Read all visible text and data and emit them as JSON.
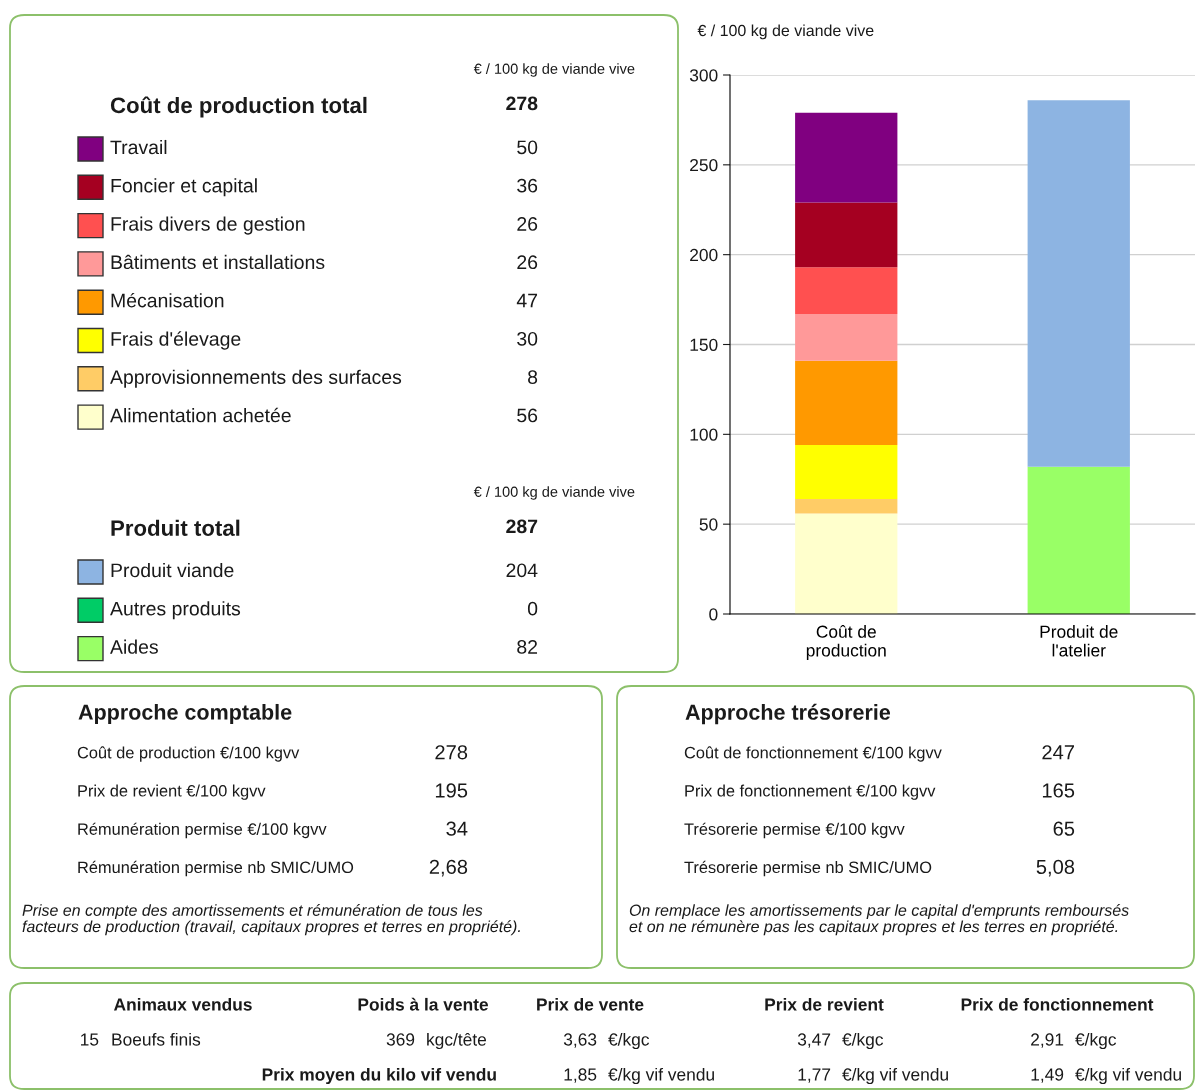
{
  "chart_data": [
    {
      "type": "other",
      "subtitle": "€ / 100 kg de viande vive",
      "title": "Coût de production total",
      "annotations": [
        "278"
      ],
      "data_labels": true,
      "categories": [
        "Travail",
        "Foncier et capital",
        "Frais divers de gestion",
        "Bâtiments et installations",
        "Mécanisation",
        "Frais d'élevage",
        "Approvisionnements des surfaces",
        "Alimentation achetée"
      ],
      "values": [
        50,
        36,
        26,
        26,
        47,
        30,
        8,
        56
      ],
      "colors": [
        "#800080",
        "#a50021",
        "#ff5050",
        "#ff9999",
        "#ff9900",
        "#ffff00",
        "#ffcc66",
        "#ffffcc"
      ]
    },
    {
      "type": "other",
      "subtitle": "€ / 100 kg de viande vive",
      "title": "Produit total",
      "annotations": [
        "287"
      ],
      "data_labels": true,
      "categories": [
        "Produit viande",
        "Autres produits",
        "Aides"
      ],
      "values": [
        204,
        0,
        82
      ],
      "colors": [
        "#8db4e2",
        "#00cc66",
        "#99ff66"
      ]
    },
    {
      "type": "bar",
      "stacked": true,
      "categories": [
        "Coût de\nproduction",
        "Produit de\nl'atelier"
      ],
      "ylabel": "€ / 100 kg de viande vive",
      "ylim": [
        0,
        300
      ],
      "yticks": [
        0,
        50,
        100,
        150,
        200,
        250,
        300
      ],
      "grid": "y",
      "series": [
        {
          "color": "#ffffcc",
          "values": [
            56,
            null
          ]
        },
        {
          "color": "#ffcc66",
          "values": [
            8,
            null
          ]
        },
        {
          "color": "#ffff00",
          "values": [
            30,
            null
          ]
        },
        {
          "color": "#ff9900",
          "values": [
            47,
            null
          ]
        },
        {
          "color": "#ff9999",
          "values": [
            26,
            null
          ]
        },
        {
          "color": "#ff5050",
          "values": [
            26,
            null
          ]
        },
        {
          "color": "#a50021",
          "values": [
            36,
            null
          ]
        },
        {
          "color": "#800080",
          "values": [
            50,
            null
          ]
        },
        {
          "color": "#99ff66",
          "values": [
            null,
            82
          ]
        },
        {
          "color": "#00cc66",
          "values": [
            null,
            0
          ]
        },
        {
          "color": "#8db4e2",
          "values": [
            null,
            204
          ]
        }
      ]
    },
    {
      "type": "other",
      "title": "Approche comptable",
      "categories": [
        "Coût de production €/100 kgvv",
        "Prix de revient €/100 kgvv",
        "Rémunération permise €/100 kgvv",
        "Rémunération permise nb SMIC/UMO"
      ],
      "values": [
        278,
        195,
        34,
        2.68
      ],
      "value_labels": [
        "278",
        "195",
        "34",
        "2,68"
      ],
      "annotations": [
        "Prise en compte des amortissements et rémunération de tous les\nfacteurs de production (travail, capitaux propres et terres en propriété)."
      ]
    },
    {
      "type": "other",
      "title": "Approche trésorerie",
      "categories": [
        "Coût de fonctionnement €/100 kgvv",
        "Prix de fonctionnement €/100 kgvv",
        "Trésorerie permise €/100 kgvv",
        "Trésorerie permise nb SMIC/UMO"
      ],
      "values": [
        247,
        165,
        65,
        5.08
      ],
      "value_labels": [
        "247",
        "165",
        "65",
        "5,08"
      ],
      "annotations": [
        "On remplace les amortissements par le capital d'emprunts remboursés\net on ne rémunère pas les capitaux propres et les terres en propriété."
      ]
    },
    {
      "type": "other",
      "categories": [
        "Animaux vendus",
        "Poids à la vente",
        "Prix de vente",
        "Prix de revient",
        "Prix de fonctionnement"
      ],
      "annotations": [
        "15",
        "Boeufs finis",
        "369",
        "kgc/tête",
        "3,63",
        "€/kgc",
        "3,47",
        "€/kgc",
        "2,91",
        "€/kgc",
        "Prix moyen du kilo vif vendu",
        "1,85",
        "€/kg vif vendu",
        "1,77",
        "€/kg vif vendu",
        "1,49",
        "€/kg vif vendu"
      ]
    }
  ]
}
